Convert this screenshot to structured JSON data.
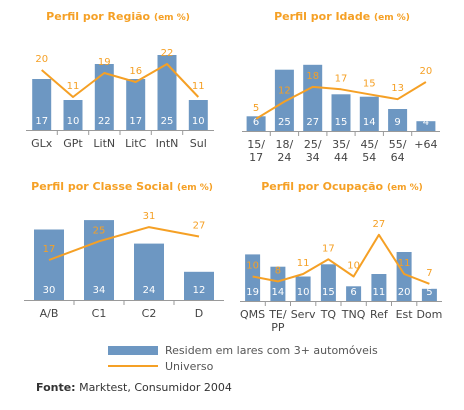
{
  "chart_data": [
    {
      "type": "bar",
      "title": "Perfil por Região",
      "title_unit": "(em %)",
      "categories": [
        "GLx",
        "GPt",
        "LitN",
        "LitC",
        "IntN",
        "Sul"
      ],
      "series": [
        {
          "name": "Residem em lares com 3+ automóveis",
          "type": "bar",
          "values": [
            17,
            10,
            22,
            17,
            25,
            10
          ]
        },
        {
          "name": "Universo",
          "type": "line",
          "values": [
            20,
            11,
            19,
            16,
            22,
            11
          ]
        }
      ]
    },
    {
      "type": "bar",
      "title": "Perfil por Idade",
      "title_unit": "(em %)",
      "categories": [
        [
          "15/",
          "17"
        ],
        [
          "18/",
          "24"
        ],
        [
          "25/",
          "34"
        ],
        [
          "35/",
          "44"
        ],
        [
          "45/",
          "54"
        ],
        [
          "55/",
          "64"
        ],
        [
          "+64"
        ]
      ],
      "series": [
        {
          "name": "Residem em lares com 3+ automóveis",
          "type": "bar",
          "values": [
            6,
            25,
            27,
            15,
            14,
            9,
            4
          ]
        },
        {
          "name": "Universo",
          "type": "line",
          "values": [
            5,
            12,
            18,
            17,
            15,
            13,
            20
          ]
        }
      ]
    },
    {
      "type": "bar",
      "title": "Perfil por Classe Social",
      "title_unit": "(em %)",
      "categories": [
        "A/B",
        "C1",
        "C2",
        "D"
      ],
      "series": [
        {
          "name": "Residem em lares com 3+ automóveis",
          "type": "bar",
          "values": [
            30,
            34,
            24,
            12
          ]
        },
        {
          "name": "Universo",
          "type": "line",
          "values": [
            17,
            25,
            31,
            27
          ]
        }
      ]
    },
    {
      "type": "bar",
      "title": "Perfil por Ocupação",
      "title_unit": "(em %)",
      "categories": [
        [
          "QMS"
        ],
        [
          "TE/",
          "PP"
        ],
        [
          "Serv"
        ],
        [
          "TQ"
        ],
        [
          "TNQ"
        ],
        [
          "Ref"
        ],
        [
          "Est"
        ],
        [
          "Dom"
        ]
      ],
      "series": [
        {
          "name": "Residem em lares com 3+ automóveis",
          "type": "bar",
          "values": [
            19,
            14,
            10,
            15,
            6,
            11,
            20,
            5
          ]
        },
        {
          "name": "Universo",
          "type": "line",
          "values": [
            10,
            8,
            11,
            17,
            10,
            27,
            11,
            7
          ]
        }
      ]
    }
  ],
  "legend": {
    "bar_label": "Residem em lares com 3+ automóveis",
    "line_label": "Universo"
  },
  "source": {
    "label": "Fonte:",
    "text": "Marktest, Consumidor 2004"
  },
  "colors": {
    "bar": "#6d97c2",
    "line": "#f5a025",
    "bar_label": "#ffffff",
    "line_label": "#f5a025",
    "axis": "#9a9a9a",
    "tick_label": "#444444"
  }
}
